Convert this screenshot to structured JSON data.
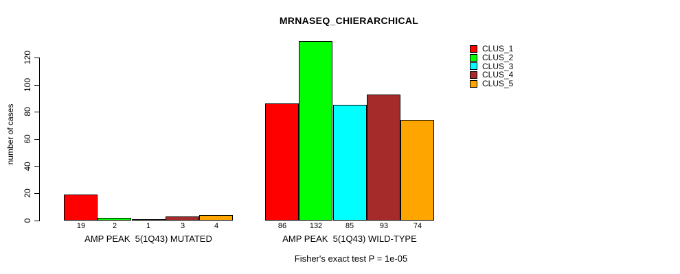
{
  "chart_data": {
    "type": "bar",
    "title": "MRNASEQ_CHIERARCHICAL",
    "ylabel": "number of cases",
    "xlabel": "",
    "yticks": [
      0,
      20,
      40,
      60,
      80,
      100,
      120
    ],
    "ylim": [
      0,
      135
    ],
    "grid": false,
    "legend_position": "top-right",
    "series": [
      {
        "name": "CLUS_1",
        "color": "#FF0000"
      },
      {
        "name": "CLUS_2",
        "color": "#00FF00"
      },
      {
        "name": "CLUS_3",
        "color": "#00FFFF"
      },
      {
        "name": "CLUS_4",
        "color": "#A52A2A"
      },
      {
        "name": "CLUS_5",
        "color": "#FFA500"
      }
    ],
    "groups": [
      {
        "label": "AMP PEAK  5(1Q43) MUTATED",
        "values": [
          19,
          2,
          1,
          3,
          4
        ]
      },
      {
        "label": "AMP PEAK  5(1Q43) WILD-TYPE",
        "values": [
          86,
          132,
          85,
          93,
          74
        ]
      }
    ],
    "footnote": "Fisher's exact test P = 1e-05",
    "colors": {
      "background": "#FFFFFF",
      "axis": "#000000",
      "text": "#000000",
      "bar_border": "#000000"
    }
  }
}
